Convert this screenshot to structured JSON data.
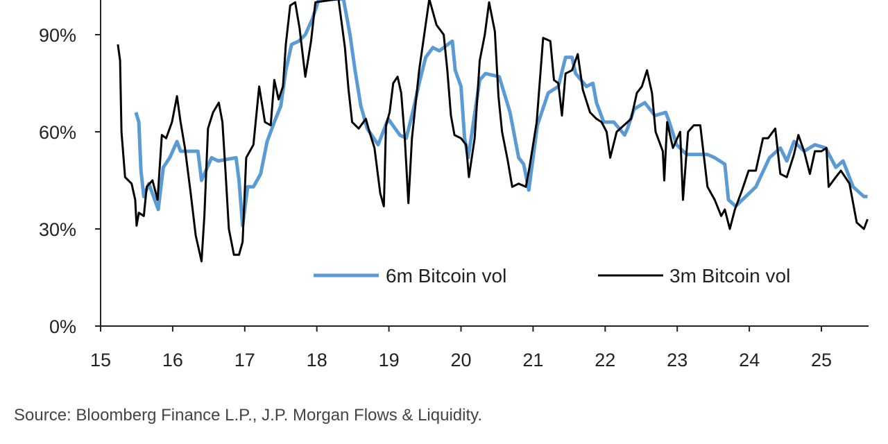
{
  "chart_data": {
    "type": "line",
    "title": "",
    "xlabel": "",
    "ylabel": "",
    "xlim": [
      15,
      25.64
    ],
    "ylim": [
      0,
      100.7
    ],
    "x_ticks": [
      "15",
      "16",
      "17",
      "18",
      "19",
      "20",
      "21",
      "22",
      "23",
      "24",
      "25"
    ],
    "y_ticks": [
      "0%",
      "30%",
      "60%",
      "90%"
    ],
    "grid": false,
    "legend_position": "bottom-right (inside plot)",
    "series": [
      {
        "name": "6m Bitcoin vol",
        "color": "#5b9bd5",
        "points": [
          [
            15.49,
            66
          ],
          [
            15.53,
            63
          ],
          [
            15.56,
            48
          ],
          [
            15.6,
            40
          ],
          [
            15.67,
            44
          ],
          [
            15.8,
            36
          ],
          [
            15.87,
            49
          ],
          [
            15.96,
            52
          ],
          [
            16.06,
            57
          ],
          [
            16.11,
            54
          ],
          [
            16.25,
            54
          ],
          [
            16.35,
            54
          ],
          [
            16.4,
            45
          ],
          [
            16.44,
            47
          ],
          [
            16.54,
            52
          ],
          [
            16.63,
            51
          ],
          [
            16.88,
            52
          ],
          [
            16.92,
            45
          ],
          [
            16.97,
            31
          ],
          [
            17.04,
            43
          ],
          [
            17.12,
            43
          ],
          [
            17.22,
            47
          ],
          [
            17.31,
            57
          ],
          [
            17.41,
            63
          ],
          [
            17.5,
            68
          ],
          [
            17.57,
            79
          ],
          [
            17.65,
            87
          ],
          [
            17.75,
            88
          ],
          [
            17.84,
            90
          ],
          [
            17.94,
            95
          ],
          [
            18.03,
            101
          ],
          [
            18.37,
            101
          ],
          [
            18.46,
            90
          ],
          [
            18.53,
            79
          ],
          [
            18.61,
            68
          ],
          [
            18.7,
            61
          ],
          [
            18.85,
            56
          ],
          [
            18.99,
            64
          ],
          [
            19.15,
            59
          ],
          [
            19.24,
            58
          ],
          [
            19.33,
            66
          ],
          [
            19.42,
            75
          ],
          [
            19.51,
            83
          ],
          [
            19.61,
            86
          ],
          [
            19.7,
            85
          ],
          [
            19.88,
            88
          ],
          [
            19.92,
            79
          ],
          [
            20.0,
            74
          ],
          [
            20.05,
            58
          ],
          [
            20.1,
            52
          ],
          [
            20.26,
            76
          ],
          [
            20.34,
            78
          ],
          [
            20.53,
            77
          ],
          [
            20.68,
            66
          ],
          [
            20.8,
            52
          ],
          [
            20.87,
            50
          ],
          [
            20.94,
            42
          ],
          [
            21.06,
            62
          ],
          [
            21.21,
            72
          ],
          [
            21.35,
            74
          ],
          [
            21.45,
            83
          ],
          [
            21.54,
            83
          ],
          [
            21.59,
            78
          ],
          [
            21.74,
            74
          ],
          [
            21.83,
            75
          ],
          [
            21.88,
            69
          ],
          [
            21.98,
            63
          ],
          [
            22.12,
            63
          ],
          [
            22.27,
            59
          ],
          [
            22.31,
            61
          ],
          [
            22.4,
            67
          ],
          [
            22.55,
            69
          ],
          [
            22.69,
            65
          ],
          [
            22.84,
            66
          ],
          [
            22.89,
            63
          ],
          [
            22.99,
            56
          ],
          [
            23.13,
            53
          ],
          [
            23.33,
            53
          ],
          [
            23.42,
            53
          ],
          [
            23.52,
            52
          ],
          [
            23.66,
            50
          ],
          [
            23.71,
            39
          ],
          [
            23.81,
            37
          ],
          [
            23.95,
            40
          ],
          [
            24.09,
            43
          ],
          [
            24.28,
            52
          ],
          [
            24.43,
            55
          ],
          [
            24.52,
            51
          ],
          [
            24.62,
            57
          ],
          [
            24.76,
            54
          ],
          [
            24.91,
            56
          ],
          [
            25.06,
            55
          ],
          [
            25.2,
            49
          ],
          [
            25.3,
            51
          ],
          [
            25.44,
            43
          ],
          [
            25.59,
            40
          ],
          [
            25.64,
            40
          ]
        ]
      },
      {
        "name": "3m Bitcoin vol",
        "color": "#000000",
        "points": [
          [
            15.24,
            87
          ],
          [
            15.27,
            82
          ],
          [
            15.29,
            60
          ],
          [
            15.34,
            46
          ],
          [
            15.43,
            44
          ],
          [
            15.48,
            39
          ],
          [
            15.5,
            31
          ],
          [
            15.53,
            35
          ],
          [
            15.6,
            34
          ],
          [
            15.64,
            43
          ],
          [
            15.72,
            45
          ],
          [
            15.79,
            39
          ],
          [
            15.85,
            59
          ],
          [
            15.91,
            58
          ],
          [
            15.99,
            63
          ],
          [
            16.06,
            71
          ],
          [
            16.11,
            63
          ],
          [
            16.17,
            55
          ],
          [
            16.25,
            41
          ],
          [
            16.32,
            28
          ],
          [
            16.4,
            20
          ],
          [
            16.44,
            34
          ],
          [
            16.49,
            61
          ],
          [
            16.56,
            66
          ],
          [
            16.64,
            69
          ],
          [
            16.69,
            63
          ],
          [
            16.73,
            49
          ],
          [
            16.78,
            30
          ],
          [
            16.85,
            22
          ],
          [
            16.92,
            22
          ],
          [
            16.97,
            26
          ],
          [
            17.02,
            52
          ],
          [
            17.12,
            56
          ],
          [
            17.2,
            74
          ],
          [
            17.28,
            63
          ],
          [
            17.36,
            62
          ],
          [
            17.41,
            76
          ],
          [
            17.47,
            70
          ],
          [
            17.53,
            74
          ],
          [
            17.57,
            87
          ],
          [
            17.63,
            99
          ],
          [
            17.7,
            100
          ],
          [
            17.76,
            92
          ],
          [
            17.84,
            77
          ],
          [
            17.92,
            88
          ],
          [
            17.98,
            100
          ],
          [
            18.3,
            101
          ],
          [
            18.39,
            86
          ],
          [
            18.44,
            73
          ],
          [
            18.49,
            63
          ],
          [
            18.58,
            61
          ],
          [
            18.68,
            64
          ],
          [
            18.73,
            60
          ],
          [
            18.8,
            55
          ],
          [
            18.88,
            41
          ],
          [
            18.93,
            37
          ],
          [
            18.96,
            62
          ],
          [
            19.01,
            66
          ],
          [
            19.06,
            75
          ],
          [
            19.12,
            77
          ],
          [
            19.17,
            72
          ],
          [
            19.22,
            58
          ],
          [
            19.27,
            38
          ],
          [
            19.32,
            58
          ],
          [
            19.42,
            79
          ],
          [
            19.49,
            90
          ],
          [
            19.56,
            101
          ],
          [
            19.66,
            93
          ],
          [
            19.76,
            90
          ],
          [
            19.81,
            79
          ],
          [
            19.86,
            65
          ],
          [
            19.91,
            59
          ],
          [
            20.0,
            58
          ],
          [
            20.07,
            56
          ],
          [
            20.11,
            46
          ],
          [
            20.19,
            58
          ],
          [
            20.26,
            82
          ],
          [
            20.33,
            90
          ],
          [
            20.39,
            100
          ],
          [
            20.47,
            91
          ],
          [
            20.52,
            71
          ],
          [
            20.57,
            60
          ],
          [
            20.65,
            51
          ],
          [
            20.71,
            43
          ],
          [
            20.8,
            44
          ],
          [
            20.9,
            43
          ],
          [
            20.95,
            49
          ],
          [
            21.05,
            63
          ],
          [
            21.14,
            89
          ],
          [
            21.24,
            88
          ],
          [
            21.29,
            76
          ],
          [
            21.35,
            75
          ],
          [
            21.4,
            65
          ],
          [
            21.45,
            78
          ],
          [
            21.54,
            79
          ],
          [
            21.62,
            84
          ],
          [
            21.69,
            73
          ],
          [
            21.79,
            66
          ],
          [
            21.88,
            64
          ],
          [
            21.95,
            63
          ],
          [
            22.02,
            60
          ],
          [
            22.07,
            52
          ],
          [
            22.16,
            60
          ],
          [
            22.31,
            63
          ],
          [
            22.36,
            64
          ],
          [
            22.44,
            72
          ],
          [
            22.51,
            74
          ],
          [
            22.58,
            79
          ],
          [
            22.65,
            72
          ],
          [
            22.7,
            60
          ],
          [
            22.8,
            54
          ],
          [
            22.82,
            45
          ],
          [
            22.86,
            63
          ],
          [
            22.94,
            55
          ],
          [
            23.04,
            60
          ],
          [
            23.08,
            39
          ],
          [
            23.15,
            60
          ],
          [
            23.23,
            62
          ],
          [
            23.32,
            62
          ],
          [
            23.42,
            43
          ],
          [
            23.52,
            39
          ],
          [
            23.61,
            34
          ],
          [
            23.66,
            36
          ],
          [
            23.73,
            30
          ],
          [
            23.8,
            36
          ],
          [
            23.9,
            42
          ],
          [
            23.99,
            48
          ],
          [
            24.09,
            48
          ],
          [
            24.19,
            58
          ],
          [
            24.26,
            58
          ],
          [
            24.36,
            61
          ],
          [
            24.43,
            47
          ],
          [
            24.52,
            46
          ],
          [
            24.62,
            53
          ],
          [
            24.68,
            59
          ],
          [
            24.76,
            54
          ],
          [
            24.84,
            47
          ],
          [
            24.91,
            54
          ],
          [
            25.0,
            54
          ],
          [
            25.07,
            55
          ],
          [
            25.1,
            43
          ],
          [
            25.2,
            46
          ],
          [
            25.27,
            48
          ],
          [
            25.39,
            44
          ],
          [
            25.49,
            32
          ],
          [
            25.59,
            30
          ],
          [
            25.64,
            33
          ]
        ]
      }
    ]
  },
  "source": "Source: Bloomberg Finance L.P., J.P. Morgan Flows & Liquidity."
}
